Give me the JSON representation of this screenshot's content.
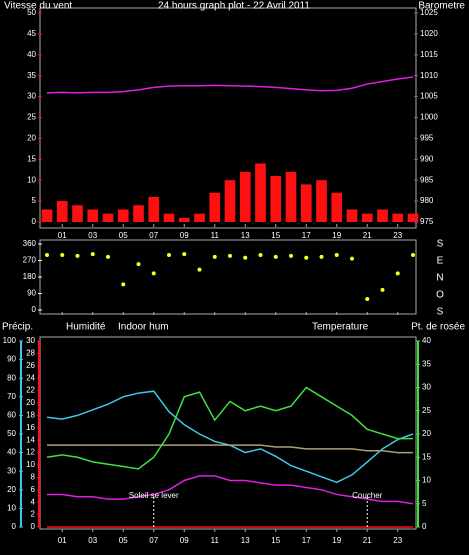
{
  "chart_data": [
    {
      "type": "bar",
      "title": "24 hours graph plot - 22 Avril 2011",
      "title_color": "#2828d0",
      "x": [
        0,
        1,
        2,
        3,
        4,
        5,
        6,
        7,
        8,
        9,
        10,
        11,
        12,
        13,
        14,
        15,
        16,
        17,
        18,
        19,
        20,
        21,
        22,
        23,
        24
      ],
      "xlim": [
        0,
        24
      ],
      "xticks": [
        {
          "value": 1,
          "label": "01"
        },
        {
          "value": 3,
          "label": "03"
        },
        {
          "value": 5,
          "label": "05"
        },
        {
          "value": 7,
          "label": "07"
        },
        {
          "value": 9,
          "label": "09"
        },
        {
          "value": 11,
          "label": "11"
        },
        {
          "value": 13,
          "label": "13"
        },
        {
          "value": 15,
          "label": "15"
        },
        {
          "value": 17,
          "label": "17"
        },
        {
          "value": 19,
          "label": "19"
        },
        {
          "value": 21,
          "label": "21"
        },
        {
          "value": 23,
          "label": "23"
        }
      ],
      "ylim": [
        0,
        50
      ],
      "yticks": [
        0,
        5,
        10,
        15,
        20,
        25,
        30,
        35,
        40,
        45,
        50
      ],
      "y2lim": [
        975,
        1025
      ],
      "y2ticks": [
        975,
        980,
        985,
        990,
        995,
        1000,
        1005,
        1010,
        1015,
        1020,
        1025
      ],
      "series": [
        {
          "name": "Vitesse du vent",
          "type": "bar",
          "axis": "y",
          "color": "#ff1010",
          "values": [
            3,
            5,
            4,
            3,
            2,
            3,
            4,
            6,
            2,
            1,
            2,
            7,
            10,
            12,
            14,
            11,
            12,
            9,
            10,
            7,
            3,
            2,
            3,
            2,
            2
          ]
        },
        {
          "name": "Barometre",
          "type": "line",
          "axis": "y2",
          "color": "#e020e0",
          "values": [
            1005.9,
            1006,
            1005.9,
            1006,
            1006,
            1006.2,
            1006.6,
            1007.2,
            1007.5,
            1007.6,
            1007.6,
            1007.7,
            1007.6,
            1007.5,
            1007.4,
            1007.2,
            1006.9,
            1006.6,
            1006.4,
            1006.5,
            1007,
            1008,
            1008.6,
            1009.2,
            1009.7
          ]
        }
      ]
    },
    {
      "type": "scatter",
      "x": [
        0,
        1,
        2,
        3,
        4,
        5,
        6,
        7,
        8,
        9,
        10,
        11,
        12,
        13,
        14,
        15,
        16,
        17,
        18,
        19,
        20,
        21,
        22,
        23,
        24
      ],
      "xlim": [
        0,
        24
      ],
      "xticks": [
        {
          "value": 1,
          "label": "01"
        },
        {
          "value": 3,
          "label": "03"
        },
        {
          "value": 5,
          "label": "05"
        },
        {
          "value": 7,
          "label": "07"
        },
        {
          "value": 9,
          "label": "09"
        },
        {
          "value": 11,
          "label": "11"
        },
        {
          "value": 13,
          "label": "13"
        },
        {
          "value": 15,
          "label": "15"
        },
        {
          "value": 17,
          "label": "17"
        },
        {
          "value": 19,
          "label": "19"
        },
        {
          "value": 21,
          "label": "21"
        },
        {
          "value": 23,
          "label": "23"
        }
      ],
      "ylim": [
        0,
        360
      ],
      "yticks": [
        0,
        90,
        180,
        270,
        360
      ],
      "compass": [
        "S",
        "E",
        "N",
        "O",
        "S"
      ],
      "series": [
        {
          "color": "#ffff20",
          "axis": "y",
          "values": [
            300,
            300,
            295,
            305,
            290,
            140,
            250,
            200,
            300,
            305,
            220,
            290,
            295,
            285,
            300,
            290,
            295,
            285,
            290,
            300,
            280,
            60,
            110,
            200,
            300
          ]
        }
      ]
    },
    {
      "type": "line",
      "x": [
        0,
        1,
        2,
        3,
        4,
        5,
        6,
        7,
        8,
        9,
        10,
        11,
        12,
        13,
        14,
        15,
        16,
        17,
        18,
        19,
        20,
        21,
        22,
        23,
        24
      ],
      "xlim": [
        0,
        24
      ],
      "xticks": [
        {
          "value": 1,
          "label": "01"
        },
        {
          "value": 3,
          "label": "03"
        },
        {
          "value": 5,
          "label": "05"
        },
        {
          "value": 7,
          "label": "07"
        },
        {
          "value": 9,
          "label": "09"
        },
        {
          "value": 11,
          "label": "11"
        },
        {
          "value": 13,
          "label": "13"
        },
        {
          "value": 15,
          "label": "15"
        },
        {
          "value": 17,
          "label": "17"
        },
        {
          "value": 19,
          "label": "19"
        },
        {
          "value": 21,
          "label": "21"
        },
        {
          "value": 23,
          "label": "23"
        }
      ],
      "ylim": [
        0,
        100
      ],
      "yticks": [
        0,
        10,
        20,
        30,
        40,
        50,
        60,
        70,
        80,
        90,
        100
      ],
      "y2lim": [
        0,
        40
      ],
      "y2ticks": [
        0,
        5,
        10,
        15,
        20,
        25,
        30,
        35,
        40
      ],
      "y3lim": [
        0,
        30
      ],
      "y3ticks": [
        0,
        2,
        4,
        6,
        8,
        10,
        12,
        14,
        16,
        18,
        20,
        22,
        24,
        26,
        28,
        30
      ],
      "series": [
        {
          "name": "Précip.",
          "axis": "y3",
          "color": "#ff1010",
          "values": [
            0,
            0,
            0,
            0,
            0,
            0,
            0,
            0,
            0,
            0,
            0,
            0,
            0,
            0,
            0,
            0,
            0,
            0,
            0,
            0,
            0,
            0,
            0,
            0,
            0
          ]
        },
        {
          "name": "Humidité",
          "axis": "y",
          "color": "#40c8e8",
          "values": [
            59,
            58,
            60,
            63,
            66,
            70,
            72,
            73,
            62,
            55,
            50,
            46,
            44,
            40,
            42,
            38,
            33,
            30,
            27,
            24,
            28,
            35,
            42,
            47,
            50
          ]
        },
        {
          "name": "Indoor hum",
          "axis": "y",
          "color": "#b0a070",
          "values": [
            44,
            44,
            44,
            44,
            44,
            44,
            44,
            44,
            44,
            44,
            44,
            44,
            44,
            44,
            44,
            43,
            43,
            42,
            42,
            42,
            42,
            41,
            41,
            40,
            40
          ]
        },
        {
          "name": "Temperature",
          "axis": "y2",
          "color": "#40e040",
          "values": [
            15,
            15.5,
            15,
            14,
            13.5,
            13,
            12.5,
            15,
            20,
            28,
            29,
            23,
            27,
            25,
            26,
            25,
            26,
            30,
            28,
            26,
            24,
            21,
            20,
            19,
            19
          ]
        },
        {
          "name": "Pt. de rosée",
          "axis": "y2",
          "color": "#e020e0",
          "values": [
            7,
            7,
            6.5,
            6.5,
            6,
            6,
            6.5,
            7,
            8,
            10,
            11,
            11,
            10,
            10,
            9.5,
            9,
            9,
            8.5,
            8,
            7,
            6.5,
            6,
            5.5,
            5.5,
            5
          ]
        }
      ],
      "annotations": [
        {
          "text": "Soleil se lever",
          "x": 7
        },
        {
          "text": "Coucher",
          "x": 21
        }
      ]
    }
  ]
}
